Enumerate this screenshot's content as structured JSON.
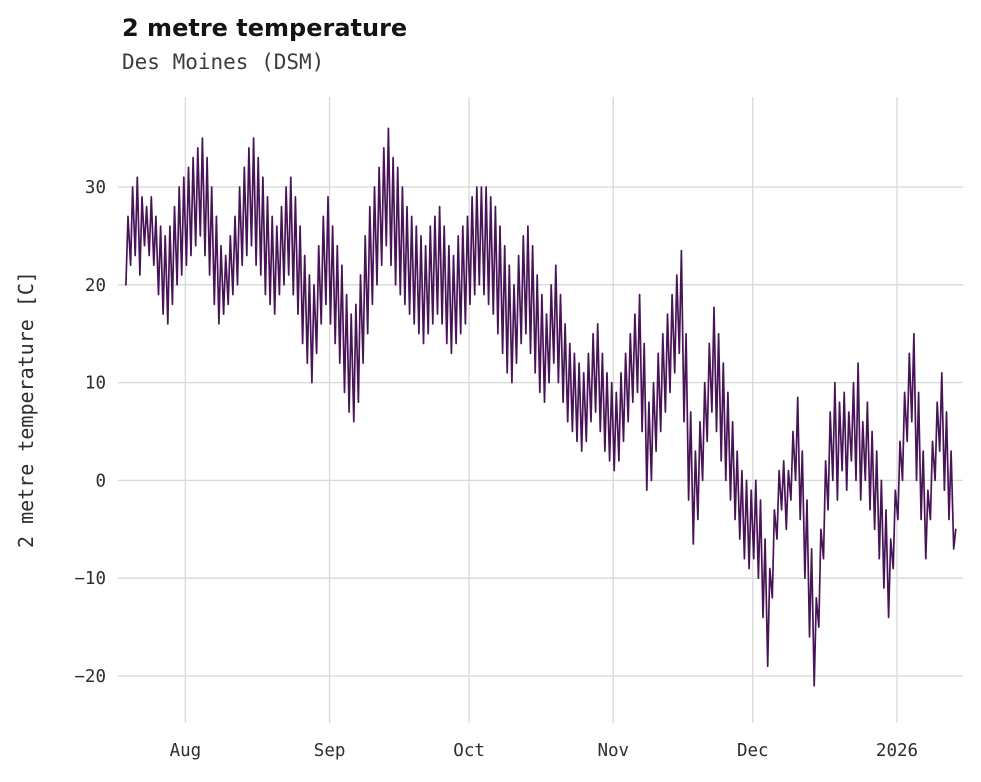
{
  "chart_data": {
    "type": "line",
    "title": "2 metre temperature",
    "subtitle": "Des Moines (DSM)",
    "ylabel": "2 metre temperature [C]",
    "xlabel": "",
    "legend": "none",
    "grid": "on",
    "line_color": "#481457",
    "grid_color": "#d8d8d8",
    "background_color": "#ffffff",
    "ylim": [
      -24.8,
      39.2
    ],
    "xlim": [
      -1.5,
      180.2
    ],
    "x_unit": "day_index_from_series_start",
    "y_ticks": [
      {
        "label": "−20",
        "value": -20
      },
      {
        "label": "−10",
        "value": -10
      },
      {
        "label": "0",
        "value": 0
      },
      {
        "label": "10",
        "value": 10
      },
      {
        "label": "20",
        "value": 20
      },
      {
        "label": "30",
        "value": 30
      }
    ],
    "x_ticks": [
      {
        "label": "Aug",
        "day": 13
      },
      {
        "label": "Sep",
        "day": 44
      },
      {
        "label": "Oct",
        "day": 74
      },
      {
        "label": "Nov",
        "day": 105
      },
      {
        "label": "Dec",
        "day": 135
      },
      {
        "label": "2026",
        "day": 166
      }
    ],
    "series": [
      {
        "name": "2 metre temperature",
        "sampling": "daily_min_and_max_of_hourly_trace",
        "daily_min": [
          20,
          22,
          23,
          21,
          24,
          23,
          22,
          19,
          17,
          16,
          18,
          20,
          21,
          22,
          23,
          24,
          25,
          23,
          21,
          18,
          16,
          17,
          18,
          19,
          20,
          22,
          23,
          24,
          22,
          21,
          19,
          18,
          17,
          19,
          20,
          21,
          19,
          17,
          14,
          12,
          10,
          13,
          16,
          18,
          16,
          14,
          12,
          9,
          7,
          6,
          8,
          12,
          15,
          18,
          20,
          22,
          24,
          22,
          20,
          19,
          18,
          17,
          16,
          15,
          14,
          15,
          16,
          17,
          16,
          14,
          13,
          14,
          15,
          16,
          18,
          19,
          20,
          19,
          18,
          17,
          15,
          13,
          11,
          10,
          12,
          14,
          15,
          13,
          11,
          9,
          8,
          10,
          12,
          10,
          8,
          6,
          5,
          4,
          3,
          4,
          6,
          7,
          5,
          3,
          2,
          1,
          2,
          4,
          6,
          8,
          9,
          5,
          -1,
          0,
          3,
          5,
          7,
          9,
          11,
          13,
          6,
          -2,
          -6.5,
          -4,
          0,
          4,
          7,
          5,
          2,
          0,
          -2,
          -4,
          -6,
          -8,
          -9,
          -8,
          -10,
          -14,
          -19,
          -12,
          -6,
          -3,
          -5,
          -2,
          0,
          -4,
          -10,
          -16,
          -21,
          -15,
          -8,
          -3,
          0,
          -2,
          1,
          -1,
          2,
          0,
          -2,
          0,
          -3,
          -5,
          -8,
          -11,
          -14,
          -9,
          -4,
          0,
          4,
          6,
          0,
          -4,
          -8,
          -4,
          0,
          3,
          -1,
          -4,
          -7
        ],
        "daily_max": [
          27,
          30,
          31,
          29,
          28,
          29,
          27,
          26,
          25,
          26,
          28,
          30,
          31,
          32,
          33,
          34,
          35,
          33,
          30,
          27,
          24,
          23,
          25,
          27,
          30,
          32,
          34,
          35,
          33,
          31,
          29,
          27,
          26,
          28,
          30,
          31,
          29,
          26,
          23,
          21,
          20,
          24,
          27,
          29,
          26,
          24,
          22,
          19,
          17,
          18,
          21,
          25,
          28,
          30,
          32,
          34,
          36,
          33,
          32,
          30,
          28,
          27,
          26,
          25,
          24,
          26,
          27,
          28,
          26,
          24,
          23,
          25,
          26,
          27,
          29,
          30,
          30,
          30,
          29,
          28,
          26,
          24,
          22,
          20,
          23,
          25,
          26,
          24,
          21,
          19,
          17,
          20,
          22,
          19,
          16,
          14,
          13,
          12,
          11,
          13,
          15,
          16,
          13,
          11,
          10,
          9,
          11,
          13,
          15,
          17,
          19,
          14,
          8,
          10,
          13,
          15,
          17,
          19,
          21,
          23.5,
          15,
          7,
          3,
          6,
          10,
          14,
          17.7,
          15,
          12,
          9,
          6,
          3,
          1,
          0,
          -1,
          0,
          -2,
          -6,
          -9,
          -3,
          1,
          2,
          1,
          5,
          8.5,
          3,
          -2,
          -7,
          -12,
          -5,
          2,
          7,
          10,
          8,
          9,
          7,
          10,
          12,
          6,
          8,
          5,
          3,
          0,
          -3,
          -6,
          -1,
          4,
          9,
          13,
          15,
          9,
          3,
          -1,
          4,
          8,
          11,
          7,
          3,
          -5
        ]
      }
    ]
  }
}
